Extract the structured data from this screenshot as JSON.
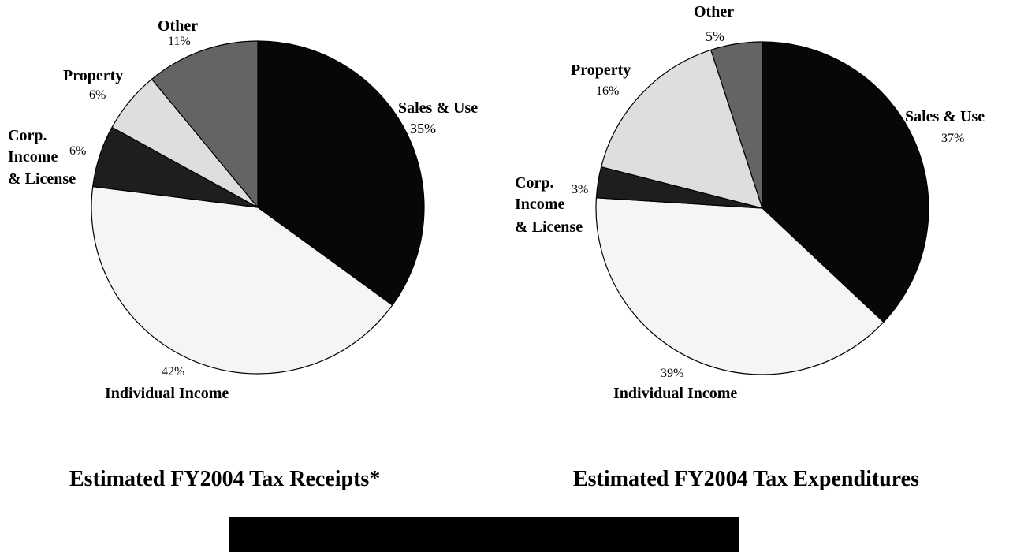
{
  "colors": {
    "Sales & Use": "#070707",
    "Individual Income": "#f5f5f5",
    "Corp. Income & License": "#1e1e1e",
    "Property": "#dedede",
    "Other": "#646464",
    "outline": "#000000",
    "footer_bar": "#000000"
  },
  "chart_data": [
    {
      "type": "pie",
      "title": "Estimated FY2004 Tax Receipts*",
      "slices": [
        {
          "label": "Sales & Use",
          "value": 35,
          "value_label": "35%"
        },
        {
          "label": "Individual Income",
          "value": 42,
          "value_label": "42%"
        },
        {
          "label": "Corp. Income & License",
          "value": 6,
          "value_label": "6%"
        },
        {
          "label": "Property",
          "value": 6,
          "value_label": "6%"
        },
        {
          "label": "Other",
          "value": 11,
          "value_label": "11%"
        }
      ],
      "label_lines": {
        "corp": [
          "Corp.",
          "Income",
          "& License"
        ]
      }
    },
    {
      "type": "pie",
      "title": "Estimated FY2004 Tax Expenditures",
      "slices": [
        {
          "label": "Sales & Use",
          "value": 37,
          "value_label": "37%"
        },
        {
          "label": "Individual Income",
          "value": 39,
          "value_label": "39%"
        },
        {
          "label": "Corp. Income & License",
          "value": 3,
          "value_label": "3%"
        },
        {
          "label": "Property",
          "value": 16,
          "value_label": "16%"
        },
        {
          "label": "Other",
          "value": 5,
          "value_label": "5%"
        }
      ],
      "label_lines": {
        "corp": [
          "Corp.",
          "Income",
          "& License"
        ]
      }
    }
  ]
}
